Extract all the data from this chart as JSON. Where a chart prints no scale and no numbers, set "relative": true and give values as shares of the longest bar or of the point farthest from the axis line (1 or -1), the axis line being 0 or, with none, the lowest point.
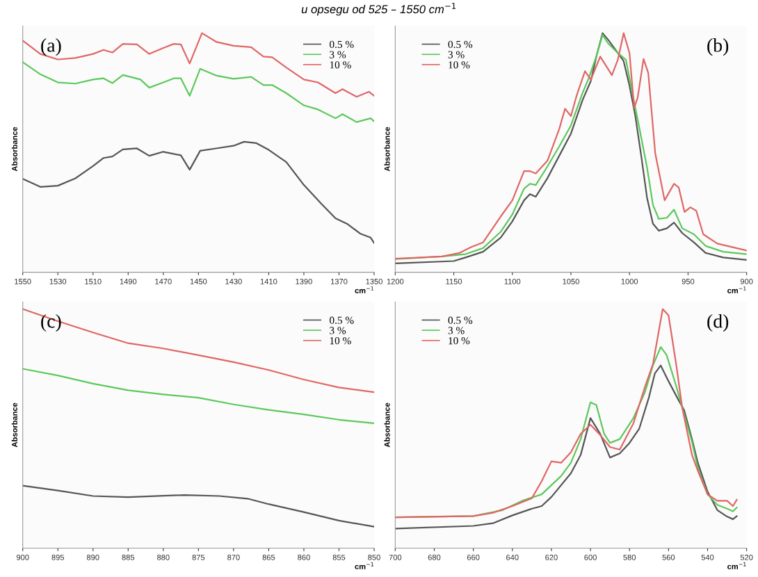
{
  "chart_data": [
    {
      "type": "line",
      "title": "u opsegu od 525 – 1550 cm$^{−1}$",
      "ylabel": "Absorbance",
      "xlabel": "cm$^{−1}$",
      "annotations": [
        "(a)"
      ],
      "relative": true,
      "legend": "top right",
      "grid": false,
      "xlim": [
        1550,
        1350
      ],
      "xticks": [
        1550,
        1530,
        1510,
        1490,
        1470,
        1450,
        1430,
        1410,
        1390,
        1370,
        1350
      ],
      "series": [
        {
          "name": "0.5 %",
          "color": "#555555",
          "x": [
            1550,
            1540,
            1530,
            1520,
            1510,
            1504,
            1499,
            1493,
            1485,
            1478,
            1470,
            1460,
            1455,
            1449,
            1440,
            1430,
            1424,
            1417,
            1410,
            1400,
            1390,
            1380,
            1372,
            1365,
            1358,
            1352,
            1350
          ],
          "values": [
            0.391,
            0.357,
            0.362,
            0.393,
            0.444,
            0.478,
            0.484,
            0.514,
            0.518,
            0.487,
            0.504,
            0.489,
            0.429,
            0.508,
            0.518,
            0.529,
            0.546,
            0.54,
            0.512,
            0.461,
            0.365,
            0.286,
            0.226,
            0.201,
            0.162,
            0.145,
            0.122
          ]
        },
        {
          "name": "3 %",
          "color": "#5cc85c",
          "x": [
            1550,
            1540,
            1530,
            1520,
            1510,
            1504,
            1499,
            1493,
            1483,
            1478,
            1470,
            1464,
            1460,
            1455,
            1449,
            1440,
            1430,
            1420,
            1413,
            1408,
            1400,
            1390,
            1382,
            1372,
            1368,
            1360,
            1352,
            1350
          ],
          "values": [
            0.879,
            0.828,
            0.794,
            0.789,
            0.806,
            0.811,
            0.791,
            0.825,
            0.806,
            0.772,
            0.794,
            0.811,
            0.811,
            0.738,
            0.851,
            0.823,
            0.809,
            0.817,
            0.783,
            0.783,
            0.749,
            0.698,
            0.681,
            0.644,
            0.661,
            0.628,
            0.644,
            0.631
          ]
        },
        {
          "name": "10 %",
          "color": "#e06666",
          "x": [
            1550,
            1540,
            1530,
            1520,
            1510,
            1504,
            1499,
            1493,
            1485,
            1478,
            1470,
            1464,
            1460,
            1455,
            1448,
            1440,
            1430,
            1420,
            1413,
            1408,
            1400,
            1390,
            1382,
            1372,
            1368,
            1360,
            1353,
            1350
          ],
          "values": [
            0.969,
            0.913,
            0.89,
            0.896,
            0.913,
            0.93,
            0.919,
            0.955,
            0.953,
            0.913,
            0.938,
            0.955,
            0.953,
            0.873,
            1.0,
            0.964,
            0.947,
            0.941,
            0.902,
            0.899,
            0.856,
            0.806,
            0.794,
            0.749,
            0.766,
            0.734,
            0.755,
            0.738
          ]
        }
      ]
    },
    {
      "type": "line",
      "ylabel": "Absorbance",
      "xlabel": "cm$^{−1}$",
      "annotations": [
        "(b)"
      ],
      "relative": true,
      "legend": "top left",
      "grid": false,
      "xlim": [
        1200,
        900
      ],
      "xticks": [
        1200,
        1150,
        1100,
        1050,
        1000,
        950,
        900
      ],
      "series": [
        {
          "name": "0.5 %",
          "color": "#555555",
          "x": [
            1200,
            1150,
            1140,
            1125,
            1110,
            1100,
            1090,
            1085,
            1080,
            1070,
            1060,
            1050,
            1040,
            1033,
            1028,
            1023,
            1018,
            1010,
            1005,
            1000,
            995,
            990,
            985,
            980,
            975,
            968,
            962,
            955,
            945,
            935,
            920,
            900
          ],
          "values": [
            0.037,
            0.047,
            0.062,
            0.086,
            0.145,
            0.213,
            0.301,
            0.327,
            0.316,
            0.394,
            0.487,
            0.58,
            0.721,
            0.8,
            0.908,
            1.0,
            0.971,
            0.917,
            0.883,
            0.78,
            0.653,
            0.487,
            0.311,
            0.203,
            0.174,
            0.184,
            0.208,
            0.164,
            0.125,
            0.081,
            0.062,
            0.052
          ]
        },
        {
          "name": "3 %",
          "color": "#5cc85c",
          "x": [
            1200,
            1160,
            1140,
            1125,
            1110,
            1100,
            1090,
            1085,
            1080,
            1070,
            1060,
            1050,
            1040,
            1035,
            1028,
            1023,
            1018,
            1010,
            1003,
            998,
            992,
            985,
            980,
            975,
            968,
            962,
            955,
            945,
            935,
            920,
            900
          ],
          "values": [
            0.055,
            0.066,
            0.076,
            0.101,
            0.169,
            0.242,
            0.35,
            0.37,
            0.365,
            0.443,
            0.526,
            0.614,
            0.751,
            0.809,
            0.907,
            0.993,
            0.956,
            0.917,
            0.888,
            0.76,
            0.614,
            0.438,
            0.282,
            0.223,
            0.228,
            0.262,
            0.184,
            0.159,
            0.11,
            0.086,
            0.076
          ]
        },
        {
          "name": "10 %",
          "color": "#e06666",
          "x": [
            1200,
            1160,
            1145,
            1135,
            1125,
            1110,
            1100,
            1090,
            1085,
            1080,
            1070,
            1060,
            1055,
            1050,
            1045,
            1038,
            1033,
            1025,
            1015,
            1010,
            1005,
            1000,
            996,
            993,
            988,
            984,
            978,
            970,
            962,
            958,
            953,
            948,
            943,
            937,
            925,
            900
          ],
          "values": [
            0.057,
            0.066,
            0.081,
            0.106,
            0.125,
            0.233,
            0.301,
            0.423,
            0.423,
            0.413,
            0.467,
            0.599,
            0.684,
            0.653,
            0.741,
            0.841,
            0.805,
            0.902,
            0.824,
            0.888,
            1.0,
            0.917,
            0.687,
            0.731,
            0.892,
            0.834,
            0.497,
            0.301,
            0.37,
            0.355,
            0.252,
            0.272,
            0.257,
            0.159,
            0.12,
            0.091
          ]
        }
      ]
    },
    {
      "type": "line",
      "ylabel": "Absorbance",
      "xlabel": "cm$^{−1}$",
      "annotations": [
        "(c)"
      ],
      "relative": true,
      "legend": "top right",
      "grid": false,
      "xlim": [
        900,
        850
      ],
      "xticks": [
        900,
        895,
        890,
        885,
        880,
        875,
        870,
        865,
        860,
        855,
        850
      ],
      "series": [
        {
          "name": "0.5 %",
          "color": "#555555",
          "x": [
            900,
            895,
            890,
            885,
            880,
            877,
            872,
            868,
            865,
            860,
            855,
            850
          ],
          "values": [
            0.261,
            0.241,
            0.218,
            0.213,
            0.219,
            0.222,
            0.218,
            0.207,
            0.184,
            0.151,
            0.115,
            0.09
          ]
        },
        {
          "name": "3 %",
          "color": "#5cc85c",
          "x": [
            900,
            895,
            890,
            885,
            880,
            875,
            870,
            865,
            860,
            855,
            850
          ],
          "values": [
            0.75,
            0.722,
            0.688,
            0.66,
            0.643,
            0.629,
            0.601,
            0.578,
            0.559,
            0.537,
            0.522
          ]
        },
        {
          "name": "10 %",
          "color": "#e06666",
          "x": [
            900,
            895,
            890,
            885,
            880,
            875,
            870,
            865,
            860,
            855,
            850
          ],
          "values": [
            1.0,
            0.949,
            0.902,
            0.857,
            0.835,
            0.807,
            0.778,
            0.745,
            0.705,
            0.672,
            0.652
          ]
        }
      ]
    },
    {
      "type": "line",
      "ylabel": "Absorbance",
      "xlabel": "cm$^{−1}$",
      "annotations": [
        "(d)"
      ],
      "relative": true,
      "legend": "top left",
      "grid": false,
      "xlim": [
        700,
        520
      ],
      "xticks": [
        700,
        680,
        660,
        640,
        620,
        600,
        580,
        560,
        540,
        520
      ],
      "series": [
        {
          "name": "0.5 %",
          "color": "#555555",
          "x": [
            700,
            660,
            650,
            640,
            630,
            625,
            620,
            610,
            605,
            600,
            595,
            590,
            585,
            580,
            575,
            570,
            567,
            564,
            560,
            555,
            552,
            548,
            545,
            540,
            535,
            530,
            527,
            525
          ],
          "values": [
            0.082,
            0.093,
            0.104,
            0.137,
            0.165,
            0.176,
            0.214,
            0.313,
            0.39,
            0.544,
            0.478,
            0.379,
            0.396,
            0.44,
            0.5,
            0.632,
            0.731,
            0.764,
            0.698,
            0.621,
            0.577,
            0.456,
            0.357,
            0.236,
            0.159,
            0.132,
            0.121,
            0.134
          ]
        },
        {
          "name": "3 %",
          "color": "#5cc85c",
          "x": [
            700,
            660,
            645,
            635,
            625,
            615,
            610,
            605,
            600,
            597,
            593,
            590,
            585,
            578,
            572,
            568,
            564,
            561,
            556,
            553,
            548,
            545,
            540,
            535,
            530,
            527,
            525
          ],
          "values": [
            0.129,
            0.134,
            0.159,
            0.198,
            0.225,
            0.302,
            0.357,
            0.456,
            0.61,
            0.599,
            0.478,
            0.44,
            0.456,
            0.544,
            0.654,
            0.764,
            0.841,
            0.808,
            0.676,
            0.588,
            0.445,
            0.335,
            0.225,
            0.181,
            0.165,
            0.154,
            0.17
          ]
        },
        {
          "name": "10 %",
          "color": "#e06666",
          "x": [
            700,
            660,
            650,
            640,
            630,
            625,
            620,
            615,
            610,
            605,
            600,
            595,
            590,
            585,
            578,
            572,
            568,
            563,
            560,
            556,
            553,
            548,
            545,
            540,
            535,
            530,
            527,
            525
          ],
          "values": [
            0.129,
            0.134,
            0.148,
            0.176,
            0.209,
            0.28,
            0.363,
            0.357,
            0.401,
            0.478,
            0.516,
            0.473,
            0.423,
            0.412,
            0.522,
            0.676,
            0.769,
            1.0,
            0.973,
            0.764,
            0.588,
            0.39,
            0.324,
            0.225,
            0.198,
            0.198,
            0.176,
            0.203
          ]
        }
      ]
    }
  ]
}
